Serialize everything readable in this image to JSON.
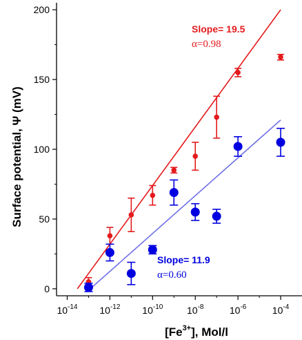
{
  "chart_data": {
    "type": "scatter",
    "xscale": "log",
    "xlabel": "[Fe3+], Mol/l",
    "xlabel_parts": {
      "pre": "[Fe",
      "sup": "3+",
      "post": "], Mol/l"
    },
    "ylabel": "Surface potential, Ψ (mV)",
    "x_ticks": [
      {
        "base": "10",
        "exp": "-14",
        "value": 1e-14
      },
      {
        "base": "10",
        "exp": "-12",
        "value": 1e-12
      },
      {
        "base": "10",
        "exp": "-10",
        "value": 1e-10
      },
      {
        "base": "10",
        "exp": "-8",
        "value": 1e-08
      },
      {
        "base": "10",
        "exp": "-6",
        "value": 1e-06
      },
      {
        "base": "10",
        "exp": "-4",
        "value": 0.0001
      }
    ],
    "y_ticks": [
      "0",
      "50",
      "100",
      "150",
      "200"
    ],
    "ylim": [
      -5,
      205
    ],
    "xlim_log10": [
      -14.5,
      -3
    ],
    "series": [
      {
        "color": "#e41a1c",
        "marker": "small-circle",
        "points": [
          {
            "x": 1e-13,
            "y": 5,
            "err": 3
          },
          {
            "x": 1e-12,
            "y": 38,
            "err": 6
          },
          {
            "x": 1e-11,
            "y": 53,
            "err": 12
          },
          {
            "x": 1e-10,
            "y": 67,
            "err": 7
          },
          {
            "x": 1e-09,
            "y": 85,
            "err": 2
          },
          {
            "x": 1e-08,
            "y": 95,
            "err": 10
          },
          {
            "x": 1e-07,
            "y": 123,
            "err": 15
          },
          {
            "x": 1e-06,
            "y": 155,
            "err": 3
          },
          {
            "x": 0.0001,
            "y": 166,
            "err": 2
          }
        ],
        "fit": {
          "x0": 3e-14,
          "y0": 0,
          "x1": 0.0001,
          "y1": 200
        },
        "annotation": {
          "slope": "Slope= 19.5",
          "alpha": "α=0.98"
        }
      },
      {
        "color": "#0000e0",
        "marker": "large-circle",
        "fit_color": "#7070e8",
        "points": [
          {
            "x": 1e-13,
            "y": 1,
            "err": 3
          },
          {
            "x": 1e-12,
            "y": 26,
            "err": 6
          },
          {
            "x": 1e-11,
            "y": 11,
            "err": 8
          },
          {
            "x": 1e-10,
            "y": 28,
            "err": 3
          },
          {
            "x": 1e-09,
            "y": 69,
            "err": 9
          },
          {
            "x": 1e-08,
            "y": 55,
            "err": 6
          },
          {
            "x": 1e-07,
            "y": 52,
            "err": 5
          },
          {
            "x": 1e-06,
            "y": 102,
            "err": 7
          },
          {
            "x": 0.0001,
            "y": 105,
            "err": 10
          }
        ],
        "fit": {
          "x0": 1.2e-13,
          "y0": 0,
          "x1": 0.0001,
          "y1": 121
        },
        "annotation": {
          "slope": "Slope= 11.9",
          "alpha": "α=0.60"
        }
      }
    ]
  }
}
